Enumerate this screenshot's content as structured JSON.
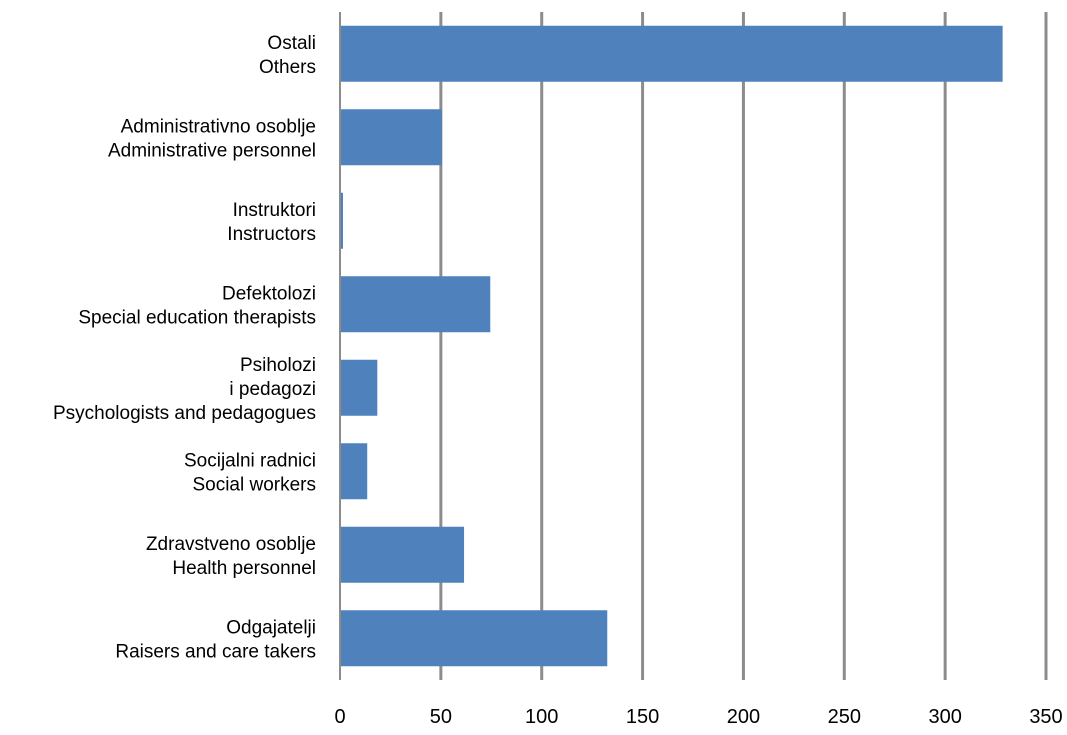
{
  "chart_data": {
    "type": "bar",
    "orientation": "horizontal",
    "title": "",
    "xlabel": "",
    "ylabel": "",
    "xlim": [
      0,
      350
    ],
    "xticks": [
      0,
      50,
      100,
      150,
      200,
      250,
      300,
      350
    ],
    "grid": true,
    "legend": "none",
    "bar_color": "#4f81bd",
    "grid_color": "#8c8c8c",
    "categories": [
      [
        "Ostali",
        "Others"
      ],
      [
        "Administrativno osoblje",
        "Administrative personnel"
      ],
      [
        "Instruktori",
        "Instructors"
      ],
      [
        "Defektolozi",
        "Special education therapists"
      ],
      [
        "Psiholozi",
        "i pedagozi",
        "Psychologists and pedagogues"
      ],
      [
        "Socijalni radnici",
        "Social workers"
      ],
      [
        "Zdravstveno osoblje",
        "Health personnel"
      ],
      [
        "Odgajatelji",
        "Raisers and care takers"
      ]
    ],
    "values": [
      328,
      50,
      1,
      74,
      18,
      13,
      61,
      132
    ]
  }
}
